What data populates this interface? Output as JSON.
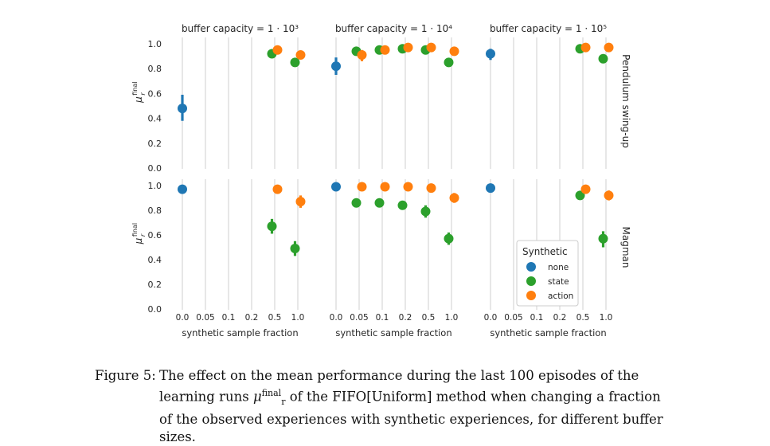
{
  "chart_data": {
    "type": "scatter",
    "x_categories": [
      "0.0",
      "0.05",
      "0.1",
      "0.2",
      "0.5",
      "1.0"
    ],
    "xlabel": "synthetic sample fraction",
    "ylabel_base": "μ",
    "ylabel_sup": "final",
    "ylabel_sub": "r",
    "ylim": [
      0.0,
      1.0
    ],
    "y_ticks": [
      "0.0",
      "0.2",
      "0.4",
      "0.6",
      "0.8",
      "1.0"
    ],
    "grid": "vertical",
    "columns": [
      "buffer capacity = 1 · 10³",
      "buffer capacity = 1 · 10⁴",
      "buffer capacity = 1 · 10⁵"
    ],
    "rows": [
      "Pendulum swing-up",
      "Magman"
    ],
    "legend": {
      "title": "Synthetic",
      "placement": "bottom-right",
      "entries": [
        "none",
        "state",
        "action"
      ]
    },
    "series_colors": {
      "none": "#1f77b4",
      "state": "#2ca02c",
      "action": "#ff7f0e"
    },
    "panels": [
      {
        "row": 0,
        "col": 0,
        "points": [
          {
            "series": "none",
            "x": "0.0",
            "y": 0.48,
            "lo": 0.38,
            "hi": 0.59
          },
          {
            "series": "state",
            "x": "0.5",
            "y": 0.92,
            "lo": 0.9,
            "hi": 0.94
          },
          {
            "series": "action",
            "x": "0.5",
            "y": 0.95,
            "lo": 0.93,
            "hi": 0.97
          },
          {
            "series": "state",
            "x": "1.0",
            "y": 0.85,
            "lo": 0.83,
            "hi": 0.87
          },
          {
            "series": "action",
            "x": "1.0",
            "y": 0.91,
            "lo": 0.89,
            "hi": 0.93
          }
        ]
      },
      {
        "row": 0,
        "col": 1,
        "points": [
          {
            "series": "none",
            "x": "0.0",
            "y": 0.82,
            "lo": 0.75,
            "hi": 0.89
          },
          {
            "series": "state",
            "x": "0.05",
            "y": 0.94,
            "lo": 0.92,
            "hi": 0.96
          },
          {
            "series": "action",
            "x": "0.05",
            "y": 0.91,
            "lo": 0.86,
            "hi": 0.95
          },
          {
            "series": "state",
            "x": "0.1",
            "y": 0.95,
            "lo": 0.93,
            "hi": 0.97
          },
          {
            "series": "action",
            "x": "0.1",
            "y": 0.95,
            "lo": 0.94,
            "hi": 0.96
          },
          {
            "series": "state",
            "x": "0.2",
            "y": 0.96,
            "lo": 0.94,
            "hi": 0.98
          },
          {
            "series": "action",
            "x": "0.2",
            "y": 0.97,
            "lo": 0.96,
            "hi": 0.98
          },
          {
            "series": "state",
            "x": "0.5",
            "y": 0.95,
            "lo": 0.93,
            "hi": 0.97
          },
          {
            "series": "action",
            "x": "0.5",
            "y": 0.97,
            "lo": 0.96,
            "hi": 0.98
          },
          {
            "series": "state",
            "x": "1.0",
            "y": 0.85,
            "lo": 0.83,
            "hi": 0.87
          },
          {
            "series": "action",
            "x": "1.0",
            "y": 0.94,
            "lo": 0.93,
            "hi": 0.95
          }
        ]
      },
      {
        "row": 0,
        "col": 2,
        "points": [
          {
            "series": "none",
            "x": "0.0",
            "y": 0.92,
            "lo": 0.87,
            "hi": 0.96
          },
          {
            "series": "state",
            "x": "0.5",
            "y": 0.96,
            "lo": 0.94,
            "hi": 0.98
          },
          {
            "series": "action",
            "x": "0.5",
            "y": 0.97,
            "lo": 0.96,
            "hi": 0.98
          },
          {
            "series": "state",
            "x": "1.0",
            "y": 0.88,
            "lo": 0.86,
            "hi": 0.9
          },
          {
            "series": "action",
            "x": "1.0",
            "y": 0.97,
            "lo": 0.96,
            "hi": 0.98
          }
        ]
      },
      {
        "row": 1,
        "col": 0,
        "points": [
          {
            "series": "none",
            "x": "0.0",
            "y": 0.97,
            "lo": 0.96,
            "hi": 0.98
          },
          {
            "series": "state",
            "x": "0.5",
            "y": 0.67,
            "lo": 0.61,
            "hi": 0.73
          },
          {
            "series": "action",
            "x": "0.5",
            "y": 0.97,
            "lo": 0.96,
            "hi": 0.98
          },
          {
            "series": "state",
            "x": "1.0",
            "y": 0.49,
            "lo": 0.43,
            "hi": 0.55
          },
          {
            "series": "action",
            "x": "1.0",
            "y": 0.87,
            "lo": 0.82,
            "hi": 0.92
          }
        ]
      },
      {
        "row": 1,
        "col": 1,
        "points": [
          {
            "series": "none",
            "x": "0.0",
            "y": 0.99,
            "lo": 0.98,
            "hi": 1.0
          },
          {
            "series": "state",
            "x": "0.05",
            "y": 0.86,
            "lo": 0.84,
            "hi": 0.88
          },
          {
            "series": "action",
            "x": "0.05",
            "y": 0.99,
            "lo": 0.98,
            "hi": 1.0
          },
          {
            "series": "state",
            "x": "0.1",
            "y": 0.86,
            "lo": 0.84,
            "hi": 0.88
          },
          {
            "series": "action",
            "x": "0.1",
            "y": 0.99,
            "lo": 0.98,
            "hi": 1.0
          },
          {
            "series": "state",
            "x": "0.2",
            "y": 0.84,
            "lo": 0.82,
            "hi": 0.86
          },
          {
            "series": "action",
            "x": "0.2",
            "y": 0.99,
            "lo": 0.98,
            "hi": 1.0
          },
          {
            "series": "state",
            "x": "0.5",
            "y": 0.79,
            "lo": 0.74,
            "hi": 0.84
          },
          {
            "series": "action",
            "x": "0.5",
            "y": 0.98,
            "lo": 0.97,
            "hi": 0.99
          },
          {
            "series": "state",
            "x": "1.0",
            "y": 0.57,
            "lo": 0.52,
            "hi": 0.62
          },
          {
            "series": "action",
            "x": "1.0",
            "y": 0.9,
            "lo": 0.86,
            "hi": 0.94
          }
        ]
      },
      {
        "row": 1,
        "col": 2,
        "points": [
          {
            "series": "none",
            "x": "0.0",
            "y": 0.98,
            "lo": 0.97,
            "hi": 0.99
          },
          {
            "series": "state",
            "x": "0.5",
            "y": 0.92,
            "lo": 0.9,
            "hi": 0.94
          },
          {
            "series": "action",
            "x": "0.5",
            "y": 0.97,
            "lo": 0.95,
            "hi": 0.99
          },
          {
            "series": "state",
            "x": "1.0",
            "y": 0.57,
            "lo": 0.5,
            "hi": 0.63
          },
          {
            "series": "action",
            "x": "1.0",
            "y": 0.92,
            "lo": 0.88,
            "hi": 0.96
          }
        ]
      }
    ]
  },
  "caption": {
    "label": "Figure 5:",
    "text_1": "The effect on the mean performance during the last 100 episodes of the learning runs",
    "mu": "μ",
    "mu_sup": "final",
    "mu_sub": "r",
    "text_2": "of the FIFO[Uniform] method when changing a fraction of the observed experiences with synthetic experiences, for different buffer sizes."
  }
}
